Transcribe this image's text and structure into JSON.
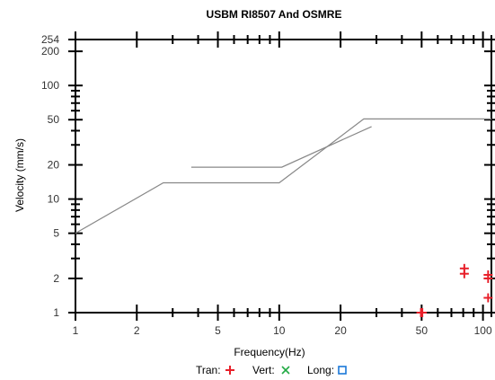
{
  "chart_data": {
    "type": "scatter",
    "title": "USBM RI8507 And OSMRE",
    "xlabel": "Frequency(Hz)",
    "ylabel": "Velocity (mm/s)",
    "x_scale": "log",
    "y_scale": "log",
    "xlim": [
      1,
      110
    ],
    "ylim": [
      1,
      254
    ],
    "x_tick_labels": [
      "1",
      "2",
      "5",
      "10",
      "20",
      "50",
      "100"
    ],
    "y_tick_labels": [
      "1",
      "2",
      "5",
      "10",
      "20",
      "50",
      "100",
      "200",
      "254"
    ],
    "limit_curves": [
      {
        "x": [
          1,
          2.7,
          10,
          26,
          110
        ],
        "y": [
          5,
          13.9,
          13.9,
          50.8,
          50.8
        ]
      },
      {
        "x": [
          3.7,
          10.3,
          28.4
        ],
        "y": [
          19.1,
          19.1,
          43.5
        ]
      }
    ],
    "series": [
      {
        "name": "Tran",
        "color": "#e8202a",
        "marker": "plus",
        "points": [
          [
            49.6,
            1.0
          ],
          [
            50.4,
            1.0
          ],
          [
            81,
            2.2
          ],
          [
            81,
            2.45
          ],
          [
            106,
            2.0
          ],
          [
            106,
            2.15
          ],
          [
            106,
            1.35
          ]
        ]
      },
      {
        "name": "Vert",
        "color": "#22aa44",
        "marker": "x",
        "points": []
      },
      {
        "name": "Long",
        "color": "#1a78d8",
        "marker": "square",
        "points": []
      }
    ],
    "legend_position": "bottom"
  },
  "legend": {
    "tran_label": "Tran:",
    "vert_label": "Vert:",
    "long_label": "Long:"
  }
}
